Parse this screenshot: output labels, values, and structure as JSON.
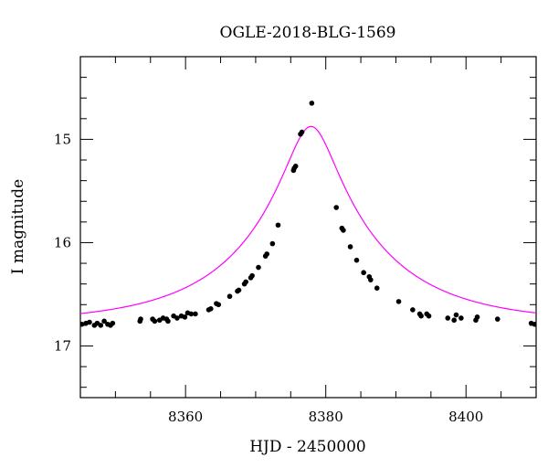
{
  "chart_data": {
    "type": "scatter",
    "title": "OGLE-2018-BLG-1569",
    "xlabel": "HJD - 2450000",
    "ylabel": "I magnitude",
    "xlim": [
      8345,
      8410
    ],
    "ylim": [
      17.5,
      14.2
    ],
    "y_inverted": true,
    "grid": false,
    "x_ticks": [
      {
        "value": 8360,
        "label": "8360"
      },
      {
        "value": 8380,
        "label": "8380"
      },
      {
        "value": 8400,
        "label": "8400"
      }
    ],
    "y_ticks": [
      {
        "value": 15,
        "label": "15"
      },
      {
        "value": 16,
        "label": "16"
      },
      {
        "value": 17,
        "label": "17"
      }
    ],
    "x_minor_step": 5,
    "y_minor_step": 0.2,
    "colors": {
      "points": "#000000",
      "model": "#ff00ff"
    },
    "model": {
      "type": "point-lens",
      "t0": 8377.9,
      "tE": 19.0,
      "u0": 0.175,
      "baseline_mag": 16.78,
      "color": "#ff00ff"
    },
    "series": [
      {
        "marker": "dot",
        "color": "#000000",
        "x": [
          8345.2,
          8345.8,
          8346.3,
          8347.0,
          8347.4,
          8347.9,
          8348.4,
          8348.9,
          8349.3,
          8349.6,
          8353.5,
          8353.6,
          8355.3,
          8355.6,
          8356.3,
          8356.8,
          8357.3,
          8357.5,
          8358.3,
          8358.8,
          8359.4,
          8359.9,
          8360.3,
          8360.8,
          8361.4,
          8363.3,
          8363.6,
          8364.4,
          8364.7,
          8366.3,
          8367.4,
          8367.6,
          8368.4,
          8368.6,
          8369.3,
          8369.5,
          8370.4,
          8371.4,
          8371.6,
          8372.4,
          8373.2,
          8375.4,
          8375.5,
          8375.7,
          8376.4,
          8376.6,
          8378.0,
          8381.5,
          8382.3,
          8382.5,
          8383.5,
          8384.4,
          8385.4,
          8386.2,
          8386.4,
          8387.3,
          8390.4,
          8392.4,
          8393.4,
          8393.6,
          8394.4,
          8394.7,
          8397.4,
          8398.3,
          8398.6,
          8399.3,
          8401.4,
          8401.6,
          8404.5,
          8409.3,
          8409.8
        ],
        "y": [
          16.79,
          16.78,
          16.77,
          16.8,
          16.78,
          16.8,
          16.76,
          16.79,
          16.8,
          16.78,
          16.76,
          16.74,
          16.74,
          16.76,
          16.75,
          16.73,
          16.74,
          16.76,
          16.71,
          16.73,
          16.71,
          16.72,
          16.68,
          16.69,
          16.69,
          16.65,
          16.64,
          16.59,
          16.6,
          16.52,
          16.47,
          16.46,
          16.4,
          16.38,
          16.34,
          16.32,
          16.24,
          16.13,
          16.11,
          16.01,
          15.83,
          15.3,
          15.28,
          15.26,
          14.95,
          14.93,
          14.65,
          15.66,
          15.86,
          15.88,
          16.04,
          16.17,
          16.29,
          16.33,
          16.36,
          16.44,
          16.57,
          16.65,
          16.69,
          16.71,
          16.69,
          16.71,
          16.73,
          16.75,
          16.7,
          16.73,
          16.75,
          16.72,
          16.74,
          16.78,
          16.79
        ]
      }
    ]
  }
}
